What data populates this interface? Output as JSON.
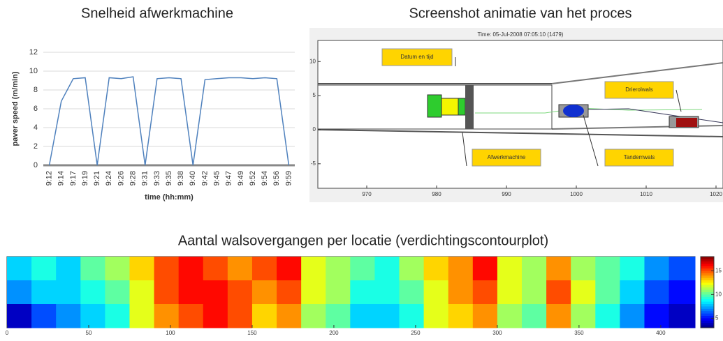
{
  "chart_data": [
    {
      "type": "line",
      "title": "Snelheid afwerkmachine",
      "x_label": "time (hh:mm)",
      "y_label": "paver speed (m/min)",
      "categories": [
        "9:12",
        "9:14",
        "9:17",
        "9:19",
        "9:21",
        "9:24",
        "9:26",
        "9:28",
        "9:31",
        "9:33",
        "9:35",
        "9:38",
        "9:40",
        "9:42",
        "9:45",
        "9:47",
        "9:49",
        "9:52",
        "9:54",
        "9:56",
        "9:59"
      ],
      "values": [
        0,
        6.8,
        9.2,
        9.3,
        0,
        9.3,
        9.2,
        9.4,
        0,
        9.2,
        9.3,
        9.2,
        0,
        9.1,
        9.2,
        9.3,
        9.3,
        9.2,
        9.3,
        9.2,
        0
      ],
      "color": "#4f81bd",
      "ylim": [
        0,
        12
      ],
      "yticks": [
        0,
        2,
        4,
        6,
        8,
        10,
        12
      ],
      "grid": true
    },
    {
      "type": "schematic",
      "title": "Screenshot animatie van het proces",
      "plot_title": "Time: 05-Jul-2008 07:05:10 (1479)",
      "annotations": [
        "Datum en tijd",
        "Afwerkmachine",
        "Tandemwals",
        "Drierolwals"
      ],
      "xlim": [
        963,
        1021
      ],
      "xticks": [
        970,
        980,
        990,
        1000,
        1010,
        1020
      ],
      "ylim": [
        -8.6,
        13.1
      ],
      "yticks": [
        -5,
        0,
        5,
        10
      ]
    },
    {
      "type": "contour",
      "title": "Aantal walsovergangen per locatie (verdichtingscontourplot)",
      "x": [
        0,
        15,
        30,
        45,
        60,
        75,
        90,
        105,
        120,
        135,
        150,
        165,
        180,
        195,
        210,
        225,
        240,
        255,
        270,
        285,
        300,
        315,
        330,
        345,
        360,
        375,
        390,
        405
      ],
      "z": [
        [
          8,
          9,
          8,
          10,
          11,
          13,
          15,
          16,
          15,
          14,
          15,
          16,
          12,
          11,
          10,
          9,
          11,
          13,
          14,
          16,
          12,
          11,
          14,
          11,
          10,
          9,
          7,
          6
        ],
        [
          7,
          8,
          8,
          9,
          10,
          12,
          15,
          16,
          16,
          15,
          14,
          15,
          12,
          11,
          9,
          9,
          10,
          12,
          14,
          15,
          12,
          11,
          15,
          12,
          10,
          8,
          6,
          5
        ],
        [
          4,
          6,
          7,
          8,
          9,
          12,
          14,
          15,
          16,
          15,
          13,
          14,
          11,
          10,
          8,
          8,
          9,
          12,
          13,
          14,
          11,
          10,
          14,
          11,
          9,
          7,
          5,
          4
        ]
      ],
      "xlim": [
        0,
        421
      ],
      "xticks": [
        0,
        50,
        100,
        150,
        200,
        250,
        300,
        350,
        400
      ],
      "zlim": [
        3,
        18
      ],
      "colorbar_ticks": [
        5,
        10,
        15
      ]
    }
  ]
}
